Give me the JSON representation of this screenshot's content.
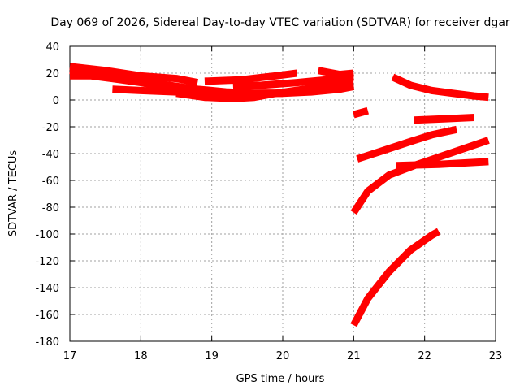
{
  "chart_data": {
    "type": "line",
    "title": "Day 069 of 2026, Sidereal Day-to-day VTEC variation (SDTVAR) for receiver dgar",
    "xlabel": "GPS time / hours",
    "ylabel": "SDTVAR / TECUs",
    "xlim": [
      17,
      23
    ],
    "ylim": [
      -180,
      40
    ],
    "xticks": [
      "17",
      "18",
      "19",
      "20",
      "21",
      "22",
      "23"
    ],
    "yticks": [
      "40",
      "20",
      "0",
      "-20",
      "-40",
      "-60",
      "-80",
      "-100",
      "-120",
      "-140",
      "-160",
      "-180"
    ],
    "grid": true,
    "series_color": "#ff0000",
    "series": [
      {
        "x": [
          17.0,
          17.5,
          18.0,
          18.5,
          18.8
        ],
        "y": [
          25,
          22,
          18,
          16,
          13
        ]
      },
      {
        "x": [
          17.0,
          17.4,
          17.8,
          18.3,
          18.7,
          19.0,
          19.2
        ],
        "y": [
          22,
          19,
          15,
          11,
          8,
          4,
          2
        ]
      },
      {
        "x": [
          17.0,
          17.3,
          17.6,
          18.0,
          18.5,
          18.7
        ],
        "y": [
          18,
          18,
          16,
          13,
          8,
          5
        ]
      },
      {
        "x": [
          17.2,
          17.6,
          18.0,
          18.4,
          18.8,
          19.2,
          19.6,
          20.0,
          20.4,
          20.8,
          21.0
        ],
        "y": [
          20,
          17,
          14,
          11,
          8,
          6,
          5,
          5,
          6,
          8,
          10
        ]
      },
      {
        "x": [
          17.6,
          18.0,
          18.5,
          19.0,
          19.5,
          20.0
        ],
        "y": [
          8,
          7,
          6,
          5,
          5,
          5
        ]
      },
      {
        "x": [
          18.5,
          18.9,
          19.3,
          19.6,
          19.9,
          20.3,
          20.7,
          21.0
        ],
        "y": [
          5,
          2,
          1,
          2,
          5,
          8,
          11,
          12
        ]
      },
      {
        "x": [
          18.9,
          19.4,
          19.9,
          20.2
        ],
        "y": [
          14,
          15,
          18,
          20
        ]
      },
      {
        "x": [
          19.3,
          19.7,
          20.2,
          20.6,
          21.0
        ],
        "y": [
          10,
          11,
          13,
          15,
          17
        ]
      },
      {
        "x": [
          20.5,
          20.8,
          21.0
        ],
        "y": [
          22,
          19,
          20
        ]
      },
      {
        "x": [
          21.0,
          21.2
        ],
        "y": [
          -11,
          -8
        ]
      },
      {
        "x": [
          21.55,
          21.8,
          22.1,
          22.4,
          22.7,
          22.9
        ],
        "y": [
          17,
          11,
          7,
          5,
          3,
          2
        ]
      },
      {
        "x": [
          21.05,
          21.4,
          21.8,
          22.1,
          22.45
        ],
        "y": [
          -44,
          -38,
          -31,
          -26,
          -22
        ]
      },
      {
        "x": [
          21.0,
          21.2,
          21.5,
          21.8,
          22.1,
          22.2
        ],
        "y": [
          -168,
          -148,
          -128,
          -112,
          -101,
          -98
        ]
      },
      {
        "x": [
          21.0,
          21.2,
          21.5,
          21.9,
          22.4,
          22.9
        ],
        "y": [
          -84,
          -68,
          -56,
          -48,
          -39,
          -30
        ]
      },
      {
        "x": [
          21.85,
          22.3,
          22.7
        ],
        "y": [
          -15,
          -14,
          -13
        ]
      },
      {
        "x": [
          21.6,
          22.2,
          22.9
        ],
        "y": [
          -49,
          -48,
          -46
        ]
      }
    ]
  }
}
